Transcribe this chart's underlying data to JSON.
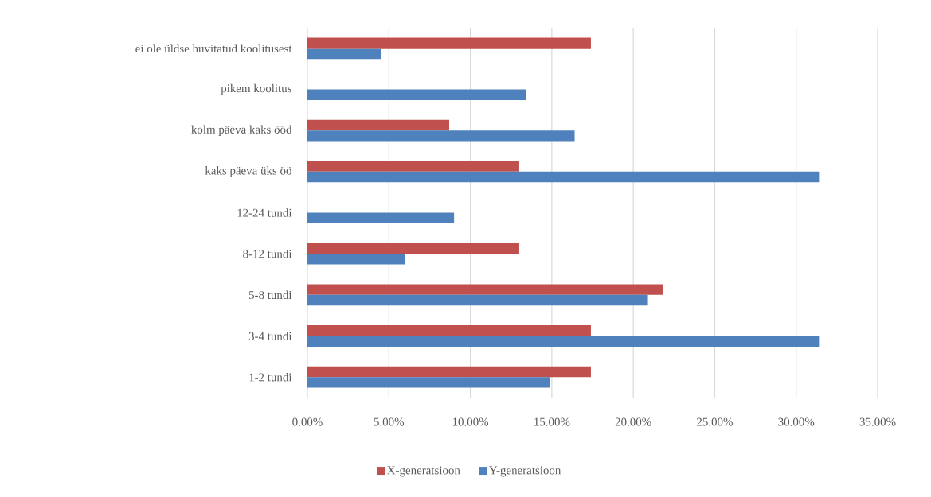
{
  "chart_data": {
    "type": "bar",
    "orientation": "horizontal",
    "categories": [
      "ei ole üldse huvitatud koolitusest",
      "pikem koolitus",
      "kolm päeva kaks ööd",
      "kaks päeva üks öö",
      "12-24 tundi",
      "8-12 tundi",
      "5-8 tundi",
      "3-4 tundi",
      "1-2 tundi"
    ],
    "series": [
      {
        "name": "X-generatsioon",
        "color": "#c0504d",
        "values": [
          17.4,
          null,
          8.7,
          13.0,
          null,
          13.0,
          21.8,
          17.4,
          17.4
        ]
      },
      {
        "name": "Y-generatsioon",
        "color": "#4f81bd",
        "values": [
          4.5,
          13.4,
          16.4,
          31.4,
          9.0,
          6.0,
          20.9,
          31.4,
          14.9
        ]
      }
    ],
    "xlim": [
      0,
      35
    ],
    "xticks": [
      {
        "value": 0,
        "label": "0.00%"
      },
      {
        "value": 5,
        "label": "5.00%"
      },
      {
        "value": 10,
        "label": "10.00%"
      },
      {
        "value": 15,
        "label": "15.00%"
      },
      {
        "value": 20,
        "label": "20.00%"
      },
      {
        "value": 25,
        "label": "25.00%"
      },
      {
        "value": 30,
        "label": "30.00%"
      },
      {
        "value": 35,
        "label": "35.00%"
      }
    ],
    "grid": "x",
    "legend": "bottom"
  }
}
